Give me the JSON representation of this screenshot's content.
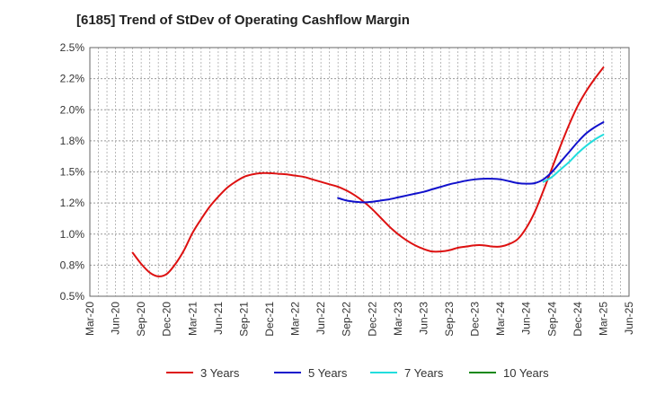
{
  "chart_data": {
    "type": "line",
    "title": "[6185]  Trend of StDev of Operating Cashflow Margin",
    "xlabel": "",
    "ylabel": "",
    "x_tick_labels": [
      "Mar-20",
      "Jun-20",
      "Sep-20",
      "Dec-20",
      "Mar-21",
      "Jun-21",
      "Sep-21",
      "Dec-21",
      "Mar-22",
      "Jun-22",
      "Sep-22",
      "Dec-22",
      "Mar-23",
      "Jun-23",
      "Sep-23",
      "Dec-23",
      "Mar-24",
      "Jun-24",
      "Sep-24",
      "Dec-24",
      "Mar-25",
      "Jun-25"
    ],
    "y_tick_labels": [
      "0.5%",
      "0.8%",
      "1.0%",
      "1.2%",
      "1.5%",
      "1.8%",
      "2.0%",
      "2.2%",
      "2.5%"
    ],
    "y_tick_values": [
      0.5,
      0.75,
      1.0,
      1.25,
      1.5,
      1.75,
      2.0,
      2.25,
      2.5
    ],
    "ylim": [
      0.5,
      2.5
    ],
    "grid": true,
    "grid_style": "dotted",
    "legend_position": "bottom",
    "series": [
      {
        "name": "3 Years",
        "color": "#dd1111",
        "x": [
          "2020-08",
          "2020-09",
          "2020-10",
          "2020-11",
          "2020-12",
          "2021-01",
          "2021-02",
          "2021-03",
          "2021-04",
          "2021-05",
          "2021-06",
          "2021-07",
          "2021-08",
          "2021-09",
          "2021-10",
          "2021-11",
          "2021-12",
          "2022-01",
          "2022-02",
          "2022-03",
          "2022-04",
          "2022-05",
          "2022-06",
          "2022-07",
          "2022-08",
          "2022-09",
          "2022-10",
          "2022-11",
          "2022-12",
          "2023-01",
          "2023-02",
          "2023-03",
          "2023-04",
          "2023-05",
          "2023-06",
          "2023-07",
          "2023-08",
          "2023-09",
          "2023-10",
          "2023-11",
          "2023-12",
          "2024-01",
          "2024-02",
          "2024-03",
          "2024-04",
          "2024-05",
          "2024-06",
          "2024-07",
          "2024-08",
          "2024-09",
          "2024-10",
          "2024-11",
          "2024-12",
          "2025-01",
          "2025-02",
          "2025-03"
        ],
        "values": [
          0.85,
          0.76,
          0.69,
          0.66,
          0.68,
          0.76,
          0.87,
          1.01,
          1.12,
          1.22,
          1.3,
          1.37,
          1.42,
          1.46,
          1.48,
          1.49,
          1.49,
          1.485,
          1.48,
          1.47,
          1.46,
          1.44,
          1.42,
          1.4,
          1.38,
          1.35,
          1.31,
          1.26,
          1.2,
          1.13,
          1.06,
          1.0,
          0.95,
          0.91,
          0.88,
          0.86,
          0.86,
          0.87,
          0.89,
          0.9,
          0.91,
          0.91,
          0.9,
          0.9,
          0.92,
          0.96,
          1.05,
          1.18,
          1.35,
          1.53,
          1.71,
          1.88,
          2.03,
          2.15,
          2.25,
          2.34
        ]
      },
      {
        "name": "5 Years",
        "color": "#1111cc",
        "x": [
          "2022-08",
          "2022-09",
          "2022-10",
          "2022-11",
          "2022-12",
          "2023-01",
          "2023-02",
          "2023-03",
          "2023-04",
          "2023-05",
          "2023-06",
          "2023-07",
          "2023-08",
          "2023-09",
          "2023-10",
          "2023-11",
          "2023-12",
          "2024-01",
          "2024-02",
          "2024-03",
          "2024-04",
          "2024-05",
          "2024-06",
          "2024-07",
          "2024-08",
          "2024-09",
          "2024-10",
          "2024-11",
          "2024-12",
          "2025-01",
          "2025-02",
          "2025-03"
        ],
        "values": [
          1.29,
          1.27,
          1.26,
          1.255,
          1.26,
          1.27,
          1.28,
          1.295,
          1.31,
          1.325,
          1.34,
          1.36,
          1.38,
          1.4,
          1.415,
          1.43,
          1.44,
          1.445,
          1.445,
          1.44,
          1.425,
          1.41,
          1.405,
          1.41,
          1.44,
          1.5,
          1.58,
          1.66,
          1.74,
          1.81,
          1.86,
          1.9
        ]
      },
      {
        "name": "7 Years",
        "color": "#22dddd",
        "x": [
          "2024-08",
          "2024-09",
          "2024-10",
          "2024-11",
          "2024-12",
          "2025-01",
          "2025-02",
          "2025-03"
        ],
        "values": [
          1.42,
          1.46,
          1.52,
          1.58,
          1.65,
          1.71,
          1.76,
          1.8
        ]
      },
      {
        "name": "10 Years",
        "color": "#118811",
        "x": [],
        "values": []
      }
    ]
  }
}
